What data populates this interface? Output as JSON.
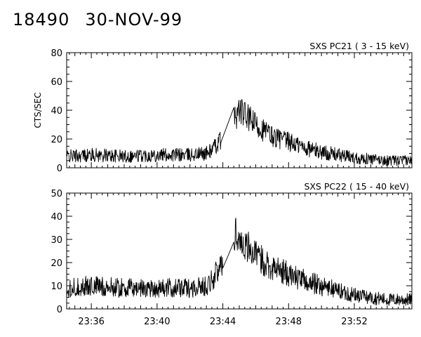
{
  "header": {
    "id": "18490",
    "date": "30-NOV-99"
  },
  "chart_data": [
    {
      "type": "line",
      "title": "SXS PC21 ( 3 - 15 keV)",
      "ylabel": "CTS/SEC",
      "xlabel": "",
      "xlim": [
        "23:34:30",
        "23:55:30"
      ],
      "ylim": [
        0,
        80
      ],
      "y_ticks": [
        0,
        20,
        40,
        60,
        80
      ],
      "x_ticks": [
        "23:36",
        "23:40",
        "23:44",
        "23:48",
        "23:52"
      ],
      "x_tick_labels_shown": false,
      "series": [
        {
          "x": [
            "23:34:30",
            "23:36:00",
            "23:38:00",
            "23:40:00",
            "23:42:00",
            "23:43:00",
            "23:43:30",
            "23:44:00",
            "23:44:30",
            "23:44:45",
            "23:45:00",
            "23:45:30",
            "23:46:00",
            "23:47:00",
            "23:48:00",
            "23:49:00",
            "23:50:00",
            "23:51:00",
            "23:52:00",
            "23:53:00",
            "23:54:00",
            "23:55:30"
          ],
          "values": [
            8,
            9,
            8,
            9,
            9,
            10,
            14,
            22,
            30,
            35,
            40,
            35,
            30,
            22,
            18,
            14,
            11,
            9,
            7,
            6,
            5,
            5
          ]
        }
      ]
    },
    {
      "type": "line",
      "title": "SXS PC22 ( 15 - 40 keV)",
      "ylabel": "",
      "xlabel": "",
      "xlim": [
        "23:34:30",
        "23:55:30"
      ],
      "ylim": [
        0,
        50
      ],
      "y_ticks": [
        0,
        10,
        20,
        30,
        40,
        50
      ],
      "x_ticks": [
        "23:36",
        "23:40",
        "23:44",
        "23:48",
        "23:52"
      ],
      "x_tick_labels_shown": true,
      "series": [
        {
          "x": [
            "23:34:30",
            "23:36:00",
            "23:38:00",
            "23:40:00",
            "23:42:00",
            "23:43:00",
            "23:43:30",
            "23:44:00",
            "23:44:30",
            "23:44:45",
            "23:45:00",
            "23:45:30",
            "23:46:00",
            "23:47:00",
            "23:48:00",
            "23:49:00",
            "23:50:00",
            "23:51:00",
            "23:52:00",
            "23:53:00",
            "23:54:00",
            "23:55:30"
          ],
          "values": [
            9,
            10,
            9,
            9,
            9,
            10,
            14,
            20,
            28,
            33,
            30,
            27,
            23,
            18,
            15,
            12,
            10,
            8,
            6,
            5,
            4,
            4
          ]
        }
      ]
    }
  ]
}
